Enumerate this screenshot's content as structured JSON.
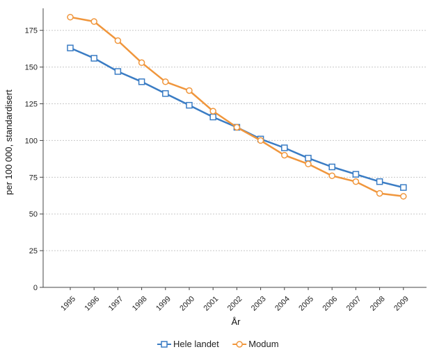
{
  "chart_data": {
    "type": "line",
    "title": "",
    "xlabel": "År",
    "ylabel": "per 100 000, standardisert",
    "ylim": [
      0,
      190
    ],
    "yticks": [
      0,
      25,
      50,
      75,
      100,
      125,
      150,
      175
    ],
    "categories": [
      "1995",
      "1996",
      "1997",
      "1998",
      "1999",
      "2000",
      "2001",
      "2002",
      "2003",
      "2004",
      "2005",
      "2006",
      "2007",
      "2008",
      "2009"
    ],
    "grid": "horizontal-dotted",
    "legend_position": "bottom-center",
    "series": [
      {
        "name": "Hele landet",
        "color": "#3a7cc4",
        "marker": "square",
        "values": [
          163,
          156,
          147,
          140,
          132,
          124,
          116,
          109,
          101,
          95,
          88,
          82,
          77,
          72,
          68
        ]
      },
      {
        "name": "Modum",
        "color": "#f0963c",
        "marker": "circle",
        "values": [
          184,
          181,
          168,
          153,
          140,
          134,
          120,
          109,
          100,
          90,
          84,
          76,
          72,
          64,
          62
        ]
      }
    ]
  }
}
